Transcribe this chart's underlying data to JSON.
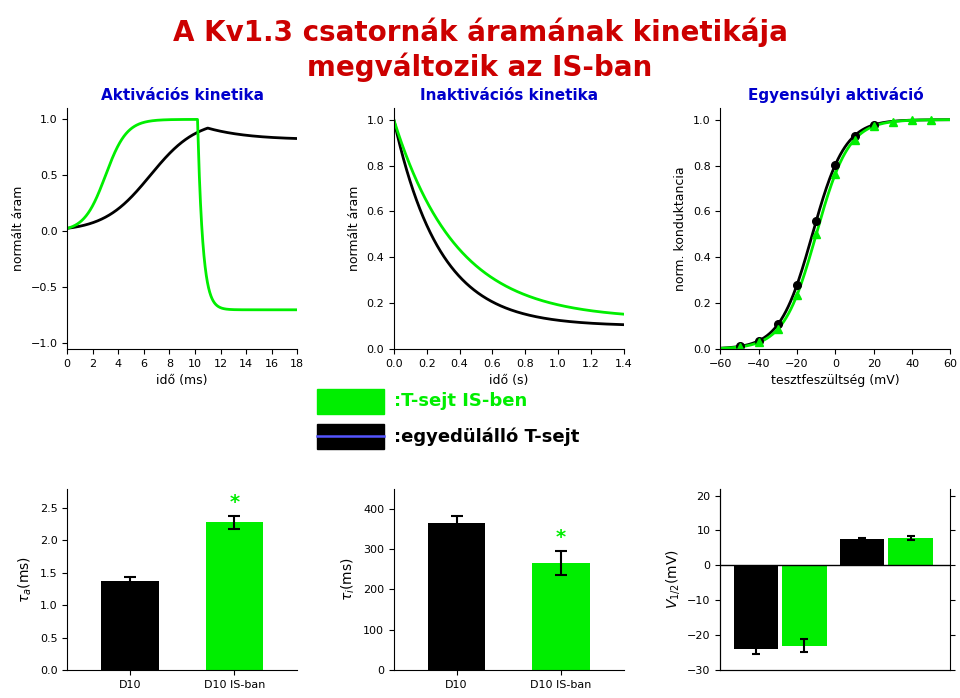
{
  "title_line1": "A Kv1.3 csatornák áramának kinetikája",
  "title_line2": "megváltozik az IS-ban",
  "title_color": "#cc0000",
  "subtitle1": "Aktivációs kinetika",
  "subtitle2": "Inaktivációs kinetika",
  "subtitle3": "Egyensúlyi aktiváció",
  "subtitle_color": "#0000cc",
  "green_color": "#00ee00",
  "black_color": "#000000",
  "legend_green_label": ":T-sejt IS-ben",
  "legend_black_label": ":egyedülálló T-sejt",
  "bar1_values": [
    1.38,
    2.28
  ],
  "bar1_errors": [
    0.06,
    0.1
  ],
  "bar2_values": [
    365,
    265
  ],
  "bar2_errors": [
    18,
    30
  ],
  "bar3_v12_values": [
    -24,
    -23
  ],
  "bar3_v12_errors": [
    1.5,
    1.8
  ],
  "bar3_k_values": [
    7.5,
    7.8
  ],
  "bar3_k_errors": [
    0.4,
    0.5
  ],
  "bar_categories": [
    "D10",
    "D10 IS-ban"
  ],
  "background_color": "#ffffff"
}
